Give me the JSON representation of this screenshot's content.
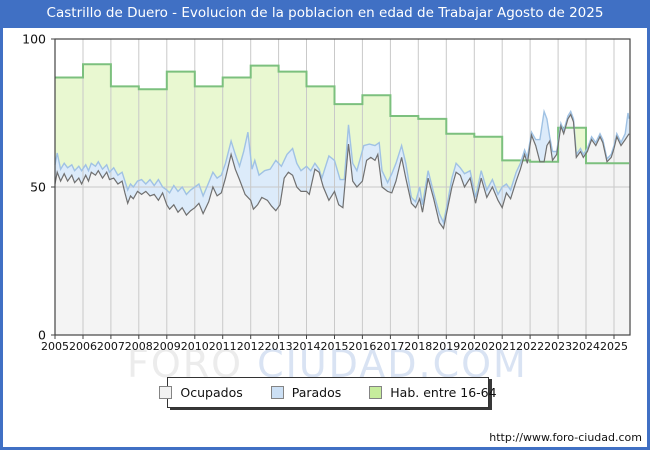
{
  "window": {
    "title": "Castrillo de Duero - Evolucion de la poblacion en edad de Trabajar Agosto de 2025"
  },
  "footer": {
    "url": "http://www.foro-ciudad.com"
  },
  "watermark": {
    "part1": "FORO",
    "part2": "CIUDAD.COM"
  },
  "colors": {
    "frame_blue": "#4070c4",
    "hab_fill": "#e9f8d1",
    "hab_line": "#7cc07e",
    "parados_fill": "#dcebfa",
    "parados_line": "#a0c2e4",
    "ocupados_fill": "#f4f4f4",
    "ocupados_line": "#707070",
    "grid": "#c9c9c9",
    "axis": "#444444",
    "watermark_gray": "#ececec",
    "watermark_blue": "#d9e3f3",
    "swatch_ocupados": "#f2f2f2",
    "swatch_parados": "#cce0f5",
    "swatch_hab": "#c6ec9c"
  },
  "chart_data": {
    "type": "area",
    "title": "Castrillo de Duero - Evolucion de la poblacion en edad de Trabajar Agosto de 2025",
    "xlabel": "",
    "ylabel": "",
    "x_axis": {
      "ticks": [
        2005,
        2006,
        2007,
        2008,
        2009,
        2010,
        2011,
        2012,
        2013,
        2014,
        2015,
        2016,
        2017,
        2018,
        2019,
        2020,
        2021,
        2022,
        2023,
        2024,
        2025
      ],
      "range": [
        2005,
        2025.55
      ]
    },
    "y_axis": {
      "ticks": [
        0,
        50,
        100
      ],
      "range": [
        0,
        100
      ]
    },
    "grid": "vertical-per-year-plus-50-line",
    "legend": [
      {
        "label": "Ocupados"
      },
      {
        "label": "Parados"
      },
      {
        "label": "Hab. entre 16-64"
      }
    ],
    "series": [
      {
        "name": "Hab. entre 16-64",
        "style": "step-area-green",
        "years": [
          2005,
          2006,
          2007,
          2008,
          2009,
          2010,
          2011,
          2012,
          2013,
          2014,
          2015,
          2016,
          2017,
          2018,
          2019,
          2020,
          2021,
          2022,
          2023,
          2024,
          2025
        ],
        "values": [
          87,
          91.5,
          84,
          83,
          89,
          84,
          87,
          91,
          89,
          84,
          78,
          81,
          74,
          73,
          68,
          67,
          59,
          58.5,
          70,
          58,
          58
        ]
      },
      {
        "name": "Parados",
        "style": "area-blue-band-top (ocupados+parados)",
        "points": [
          [
            2005.0,
            57.5
          ],
          [
            2005.08,
            61.5
          ],
          [
            2005.2,
            56
          ],
          [
            2005.33,
            58
          ],
          [
            2005.45,
            56.5
          ],
          [
            2005.6,
            57.5
          ],
          [
            2005.7,
            55.5
          ],
          [
            2005.85,
            57
          ],
          [
            2005.95,
            55.5
          ],
          [
            2006.1,
            57.5
          ],
          [
            2006.2,
            55.5
          ],
          [
            2006.3,
            58
          ],
          [
            2006.45,
            57
          ],
          [
            2006.55,
            58.5
          ],
          [
            2006.7,
            56
          ],
          [
            2006.85,
            57.5
          ],
          [
            2006.95,
            55
          ],
          [
            2007.1,
            56.5
          ],
          [
            2007.25,
            54
          ],
          [
            2007.4,
            55
          ],
          [
            2007.5,
            52
          ],
          [
            2007.6,
            49
          ],
          [
            2007.7,
            51
          ],
          [
            2007.8,
            50
          ],
          [
            2007.95,
            52
          ],
          [
            2008.1,
            52.5
          ],
          [
            2008.25,
            51
          ],
          [
            2008.4,
            52.5
          ],
          [
            2008.55,
            50.5
          ],
          [
            2008.7,
            52.5
          ],
          [
            2008.85,
            50
          ],
          [
            2009.0,
            49
          ],
          [
            2009.1,
            48
          ],
          [
            2009.25,
            50.5
          ],
          [
            2009.4,
            48.5
          ],
          [
            2009.55,
            50
          ],
          [
            2009.7,
            47.5
          ],
          [
            2009.85,
            49
          ],
          [
            2010.0,
            50
          ],
          [
            2010.15,
            51
          ],
          [
            2010.3,
            47
          ],
          [
            2010.5,
            51.5
          ],
          [
            2010.65,
            55
          ],
          [
            2010.8,
            53
          ],
          [
            2010.95,
            54
          ],
          [
            2011.1,
            58
          ],
          [
            2011.3,
            65.5
          ],
          [
            2011.45,
            61
          ],
          [
            2011.6,
            57
          ],
          [
            2011.75,
            62
          ],
          [
            2011.9,
            68.5
          ],
          [
            2012.05,
            56
          ],
          [
            2012.15,
            59
          ],
          [
            2012.3,
            54
          ],
          [
            2012.5,
            55.5
          ],
          [
            2012.7,
            56
          ],
          [
            2012.9,
            59
          ],
          [
            2013.1,
            57
          ],
          [
            2013.3,
            61
          ],
          [
            2013.5,
            63
          ],
          [
            2013.65,
            58
          ],
          [
            2013.8,
            55.5
          ],
          [
            2014.0,
            57
          ],
          [
            2014.15,
            55.5
          ],
          [
            2014.3,
            58
          ],
          [
            2014.45,
            56
          ],
          [
            2014.55,
            53
          ],
          [
            2014.8,
            60.5
          ],
          [
            2015.0,
            59
          ],
          [
            2015.2,
            52.5
          ],
          [
            2015.35,
            52.5
          ],
          [
            2015.5,
            71
          ],
          [
            2015.65,
            58
          ],
          [
            2015.8,
            55.5
          ],
          [
            2016.05,
            64
          ],
          [
            2016.25,
            64.5
          ],
          [
            2016.45,
            64
          ],
          [
            2016.6,
            65
          ],
          [
            2016.7,
            55.5
          ],
          [
            2016.9,
            51.5
          ],
          [
            2017.05,
            54.5
          ],
          [
            2017.2,
            58
          ],
          [
            2017.4,
            64
          ],
          [
            2017.55,
            58
          ],
          [
            2017.75,
            46.5
          ],
          [
            2017.9,
            45
          ],
          [
            2018.05,
            50
          ],
          [
            2018.15,
            44
          ],
          [
            2018.35,
            55.5
          ],
          [
            2018.55,
            48
          ],
          [
            2018.75,
            41
          ],
          [
            2018.9,
            38
          ],
          [
            2019.05,
            45
          ],
          [
            2019.2,
            53
          ],
          [
            2019.35,
            58
          ],
          [
            2019.5,
            56.5
          ],
          [
            2019.65,
            54.5
          ],
          [
            2019.85,
            55.5
          ],
          [
            2020.05,
            46.5
          ],
          [
            2020.25,
            55.5
          ],
          [
            2020.45,
            49
          ],
          [
            2020.65,
            52.5
          ],
          [
            2020.85,
            47.5
          ],
          [
            2021.0,
            50
          ],
          [
            2021.15,
            51
          ],
          [
            2021.3,
            49
          ],
          [
            2021.5,
            55
          ],
          [
            2021.65,
            58
          ],
          [
            2021.8,
            62.5
          ],
          [
            2021.9,
            60
          ],
          [
            2022.05,
            68.5
          ],
          [
            2022.2,
            66
          ],
          [
            2022.35,
            66
          ],
          [
            2022.5,
            75.5
          ],
          [
            2022.6,
            73
          ],
          [
            2022.7,
            67
          ],
          [
            2022.8,
            62
          ],
          [
            2022.95,
            62
          ],
          [
            2023.1,
            71.5
          ],
          [
            2023.2,
            69
          ],
          [
            2023.35,
            74
          ],
          [
            2023.45,
            75.5
          ],
          [
            2023.55,
            73
          ],
          [
            2023.65,
            61
          ],
          [
            2023.8,
            63
          ],
          [
            2023.9,
            61
          ],
          [
            2024.05,
            63
          ],
          [
            2024.2,
            67
          ],
          [
            2024.35,
            65
          ],
          [
            2024.5,
            68
          ],
          [
            2024.6,
            66
          ],
          [
            2024.75,
            59.5
          ],
          [
            2024.9,
            61
          ],
          [
            2025.0,
            64
          ],
          [
            2025.1,
            68
          ],
          [
            2025.25,
            65
          ],
          [
            2025.4,
            68
          ],
          [
            2025.5,
            75
          ],
          [
            2025.54,
            73
          ]
        ]
      },
      {
        "name": "Ocupados",
        "style": "area-gray",
        "points": [
          [
            2005.0,
            51
          ],
          [
            2005.08,
            55
          ],
          [
            2005.2,
            52
          ],
          [
            2005.33,
            54.5
          ],
          [
            2005.45,
            52
          ],
          [
            2005.6,
            54
          ],
          [
            2005.7,
            51.5
          ],
          [
            2005.85,
            53
          ],
          [
            2005.95,
            51
          ],
          [
            2006.1,
            54
          ],
          [
            2006.2,
            52
          ],
          [
            2006.3,
            55
          ],
          [
            2006.45,
            54
          ],
          [
            2006.55,
            55.5
          ],
          [
            2006.7,
            53
          ],
          [
            2006.85,
            55
          ],
          [
            2006.95,
            52.5
          ],
          [
            2007.1,
            53
          ],
          [
            2007.25,
            51
          ],
          [
            2007.4,
            52
          ],
          [
            2007.5,
            48
          ],
          [
            2007.6,
            44.5
          ],
          [
            2007.7,
            47
          ],
          [
            2007.8,
            46
          ],
          [
            2007.95,
            48.5
          ],
          [
            2008.1,
            47.5
          ],
          [
            2008.25,
            48.5
          ],
          [
            2008.4,
            47
          ],
          [
            2008.55,
            47.5
          ],
          [
            2008.7,
            45.5
          ],
          [
            2008.85,
            48
          ],
          [
            2009.0,
            44
          ],
          [
            2009.1,
            42.5
          ],
          [
            2009.25,
            44
          ],
          [
            2009.4,
            41.5
          ],
          [
            2009.55,
            43
          ],
          [
            2009.7,
            40.5
          ],
          [
            2009.85,
            42
          ],
          [
            2010.0,
            43
          ],
          [
            2010.15,
            44.5
          ],
          [
            2010.3,
            41
          ],
          [
            2010.5,
            45
          ],
          [
            2010.65,
            50
          ],
          [
            2010.8,
            47
          ],
          [
            2010.95,
            48
          ],
          [
            2011.1,
            53
          ],
          [
            2011.3,
            61
          ],
          [
            2011.45,
            56
          ],
          [
            2011.6,
            52.5
          ],
          [
            2011.8,
            47.5
          ],
          [
            2012.0,
            45.5
          ],
          [
            2012.1,
            42.5
          ],
          [
            2012.25,
            44
          ],
          [
            2012.4,
            46.5
          ],
          [
            2012.6,
            45.5
          ],
          [
            2012.75,
            43.5
          ],
          [
            2012.9,
            42
          ],
          [
            2013.05,
            44
          ],
          [
            2013.2,
            53
          ],
          [
            2013.35,
            55
          ],
          [
            2013.5,
            54
          ],
          [
            2013.65,
            50
          ],
          [
            2013.8,
            48.5
          ],
          [
            2014.0,
            48.5
          ],
          [
            2014.1,
            47.5
          ],
          [
            2014.3,
            56
          ],
          [
            2014.45,
            55
          ],
          [
            2014.6,
            50
          ],
          [
            2014.8,
            45.5
          ],
          [
            2015.0,
            48.5
          ],
          [
            2015.15,
            44
          ],
          [
            2015.3,
            43
          ],
          [
            2015.5,
            64.5
          ],
          [
            2015.65,
            52
          ],
          [
            2015.8,
            50
          ],
          [
            2016.0,
            52
          ],
          [
            2016.15,
            59
          ],
          [
            2016.3,
            60
          ],
          [
            2016.45,
            59
          ],
          [
            2016.55,
            61
          ],
          [
            2016.7,
            50
          ],
          [
            2016.9,
            48.5
          ],
          [
            2017.05,
            48
          ],
          [
            2017.2,
            52
          ],
          [
            2017.4,
            60
          ],
          [
            2017.55,
            53
          ],
          [
            2017.75,
            44.5
          ],
          [
            2017.9,
            43
          ],
          [
            2018.05,
            46
          ],
          [
            2018.15,
            41.5
          ],
          [
            2018.35,
            53
          ],
          [
            2018.55,
            46
          ],
          [
            2018.75,
            38
          ],
          [
            2018.9,
            36
          ],
          [
            2019.05,
            43
          ],
          [
            2019.2,
            50
          ],
          [
            2019.35,
            55
          ],
          [
            2019.5,
            54
          ],
          [
            2019.65,
            50
          ],
          [
            2019.85,
            53
          ],
          [
            2020.05,
            44.5
          ],
          [
            2020.25,
            53
          ],
          [
            2020.45,
            46.5
          ],
          [
            2020.65,
            50
          ],
          [
            2020.85,
            45.5
          ],
          [
            2021.0,
            43
          ],
          [
            2021.15,
            48
          ],
          [
            2021.3,
            46
          ],
          [
            2021.5,
            52
          ],
          [
            2021.65,
            56
          ],
          [
            2021.8,
            61
          ],
          [
            2021.9,
            58
          ],
          [
            2022.05,
            67.5
          ],
          [
            2022.2,
            64
          ],
          [
            2022.35,
            58.5
          ],
          [
            2022.5,
            58.5
          ],
          [
            2022.6,
            64
          ],
          [
            2022.7,
            65.5
          ],
          [
            2022.8,
            59
          ],
          [
            2022.95,
            61
          ],
          [
            2023.1,
            70.5
          ],
          [
            2023.2,
            68
          ],
          [
            2023.35,
            73
          ],
          [
            2023.45,
            74.5
          ],
          [
            2023.55,
            72
          ],
          [
            2023.65,
            60
          ],
          [
            2023.8,
            62
          ],
          [
            2023.9,
            60
          ],
          [
            2024.05,
            62
          ],
          [
            2024.2,
            66
          ],
          [
            2024.35,
            64
          ],
          [
            2024.5,
            67
          ],
          [
            2024.6,
            65
          ],
          [
            2024.75,
            58.5
          ],
          [
            2024.9,
            60
          ],
          [
            2025.0,
            63
          ],
          [
            2025.1,
            67
          ],
          [
            2025.25,
            64
          ],
          [
            2025.4,
            66
          ],
          [
            2025.54,
            68
          ]
        ]
      }
    ]
  }
}
